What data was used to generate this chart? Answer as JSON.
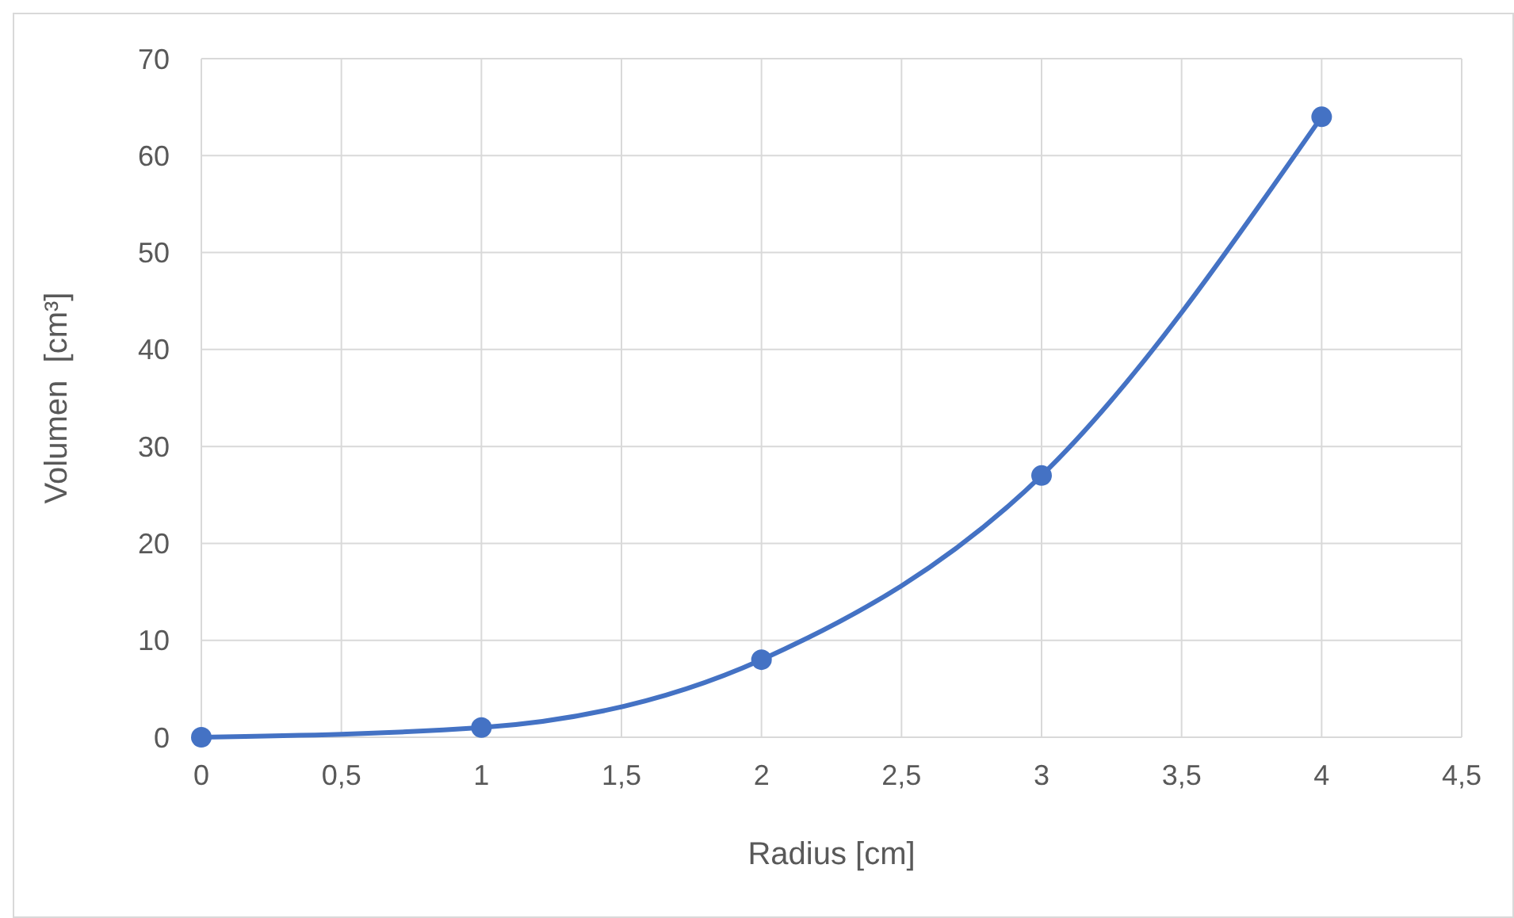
{
  "chart_data": {
    "type": "line",
    "xlabel": "Radius [cm]",
    "ylabel": "Volumen  [cm³]",
    "x": [
      0,
      1,
      2,
      3,
      4
    ],
    "series": [
      {
        "color": "#4472c4",
        "values": [
          0,
          1,
          8,
          27,
          64
        ]
      }
    ],
    "xlim": [
      0,
      4.5
    ],
    "xticks": [
      0,
      {
        "value": 0.5,
        "label": "0,5"
      },
      1,
      {
        "value": 1.5,
        "label": "1,5"
      },
      2,
      {
        "value": 2.5,
        "label": "2,5"
      },
      3,
      {
        "value": 3.5,
        "label": "3,5"
      },
      4,
      {
        "value": 4.5,
        "label": "4,5"
      }
    ],
    "ylim": [
      0,
      70
    ],
    "yticks": [
      0,
      10,
      20,
      30,
      40,
      50,
      60,
      70
    ],
    "grid": true,
    "marker": "circle",
    "line_style": "solid"
  }
}
